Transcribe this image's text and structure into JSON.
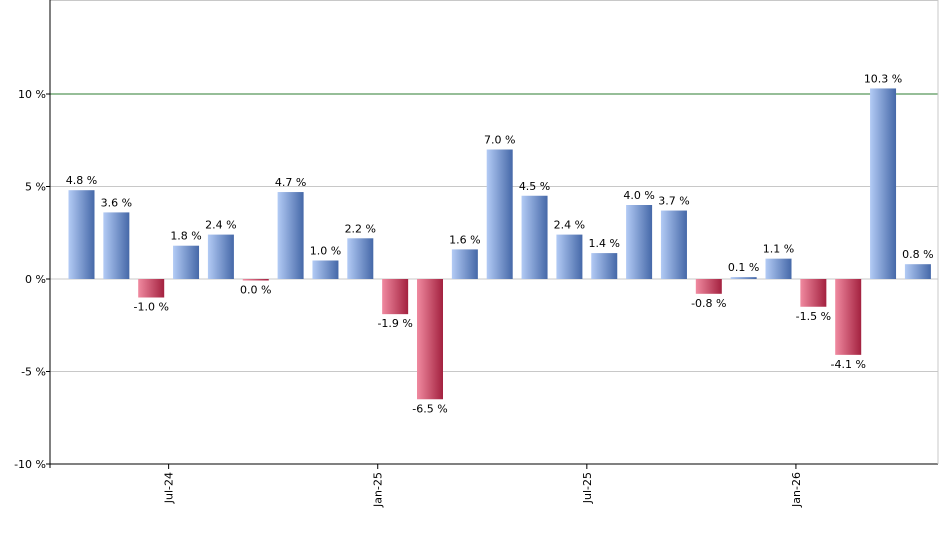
{
  "colors": {
    "positive_light": "#b3cbf5",
    "positive_dark": "#4568a8",
    "negative_light": "#f08aa0",
    "negative_dark": "#a3213f",
    "grid": "#c8c8c8",
    "ten_percent_line": "#2e7d32",
    "axis": "#000000"
  },
  "chart_data": {
    "type": "bar",
    "title": "",
    "xlabel": "",
    "ylabel": "",
    "ylim": [
      -10,
      12.5
    ],
    "grid": true,
    "y_ticks": [
      {
        "value": 10,
        "label": "10 %"
      },
      {
        "value": 5,
        "label": "5 %"
      },
      {
        "value": 0,
        "label": "0 %"
      },
      {
        "value": -5,
        "label": "-5 %"
      },
      {
        "value": -10,
        "label": "-10 %"
      }
    ],
    "x_ticks": [
      {
        "index": 2.5,
        "label": "Jul-24"
      },
      {
        "index": 8.5,
        "label": "Jan-25"
      },
      {
        "index": 14.5,
        "label": "Jul-25"
      },
      {
        "index": 20.5,
        "label": "Jan-26"
      }
    ],
    "values": [
      4.8,
      3.6,
      -1.0,
      1.8,
      2.4,
      0.0,
      4.7,
      1.0,
      2.2,
      -1.9,
      -6.5,
      1.6,
      7.0,
      4.5,
      2.4,
      1.4,
      4.0,
      3.7,
      -0.8,
      0.1,
      1.1,
      -1.5,
      -4.1,
      10.3,
      0.8
    ],
    "signs": [
      1,
      1,
      -1,
      1,
      1,
      -1,
      1,
      1,
      1,
      -1,
      -1,
      1,
      1,
      1,
      1,
      1,
      1,
      1,
      -1,
      1,
      1,
      -1,
      -1,
      1,
      1
    ],
    "labels": [
      "4.8 %",
      "3.6 %",
      "-1.0 %",
      "1.8 %",
      "2.4 %",
      "0.0 %",
      "4.7 %",
      "1.0 %",
      "2.2 %",
      "-1.9 %",
      "-6.5 %",
      "1.6 %",
      "7.0 %",
      "4.5 %",
      "2.4 %",
      "1.4 %",
      "4.0 %",
      "3.7 %",
      "-0.8 %",
      "0.1 %",
      "1.1 %",
      "-1.5 %",
      "-4.1 %",
      "10.3 %",
      "0.8 %"
    ]
  }
}
